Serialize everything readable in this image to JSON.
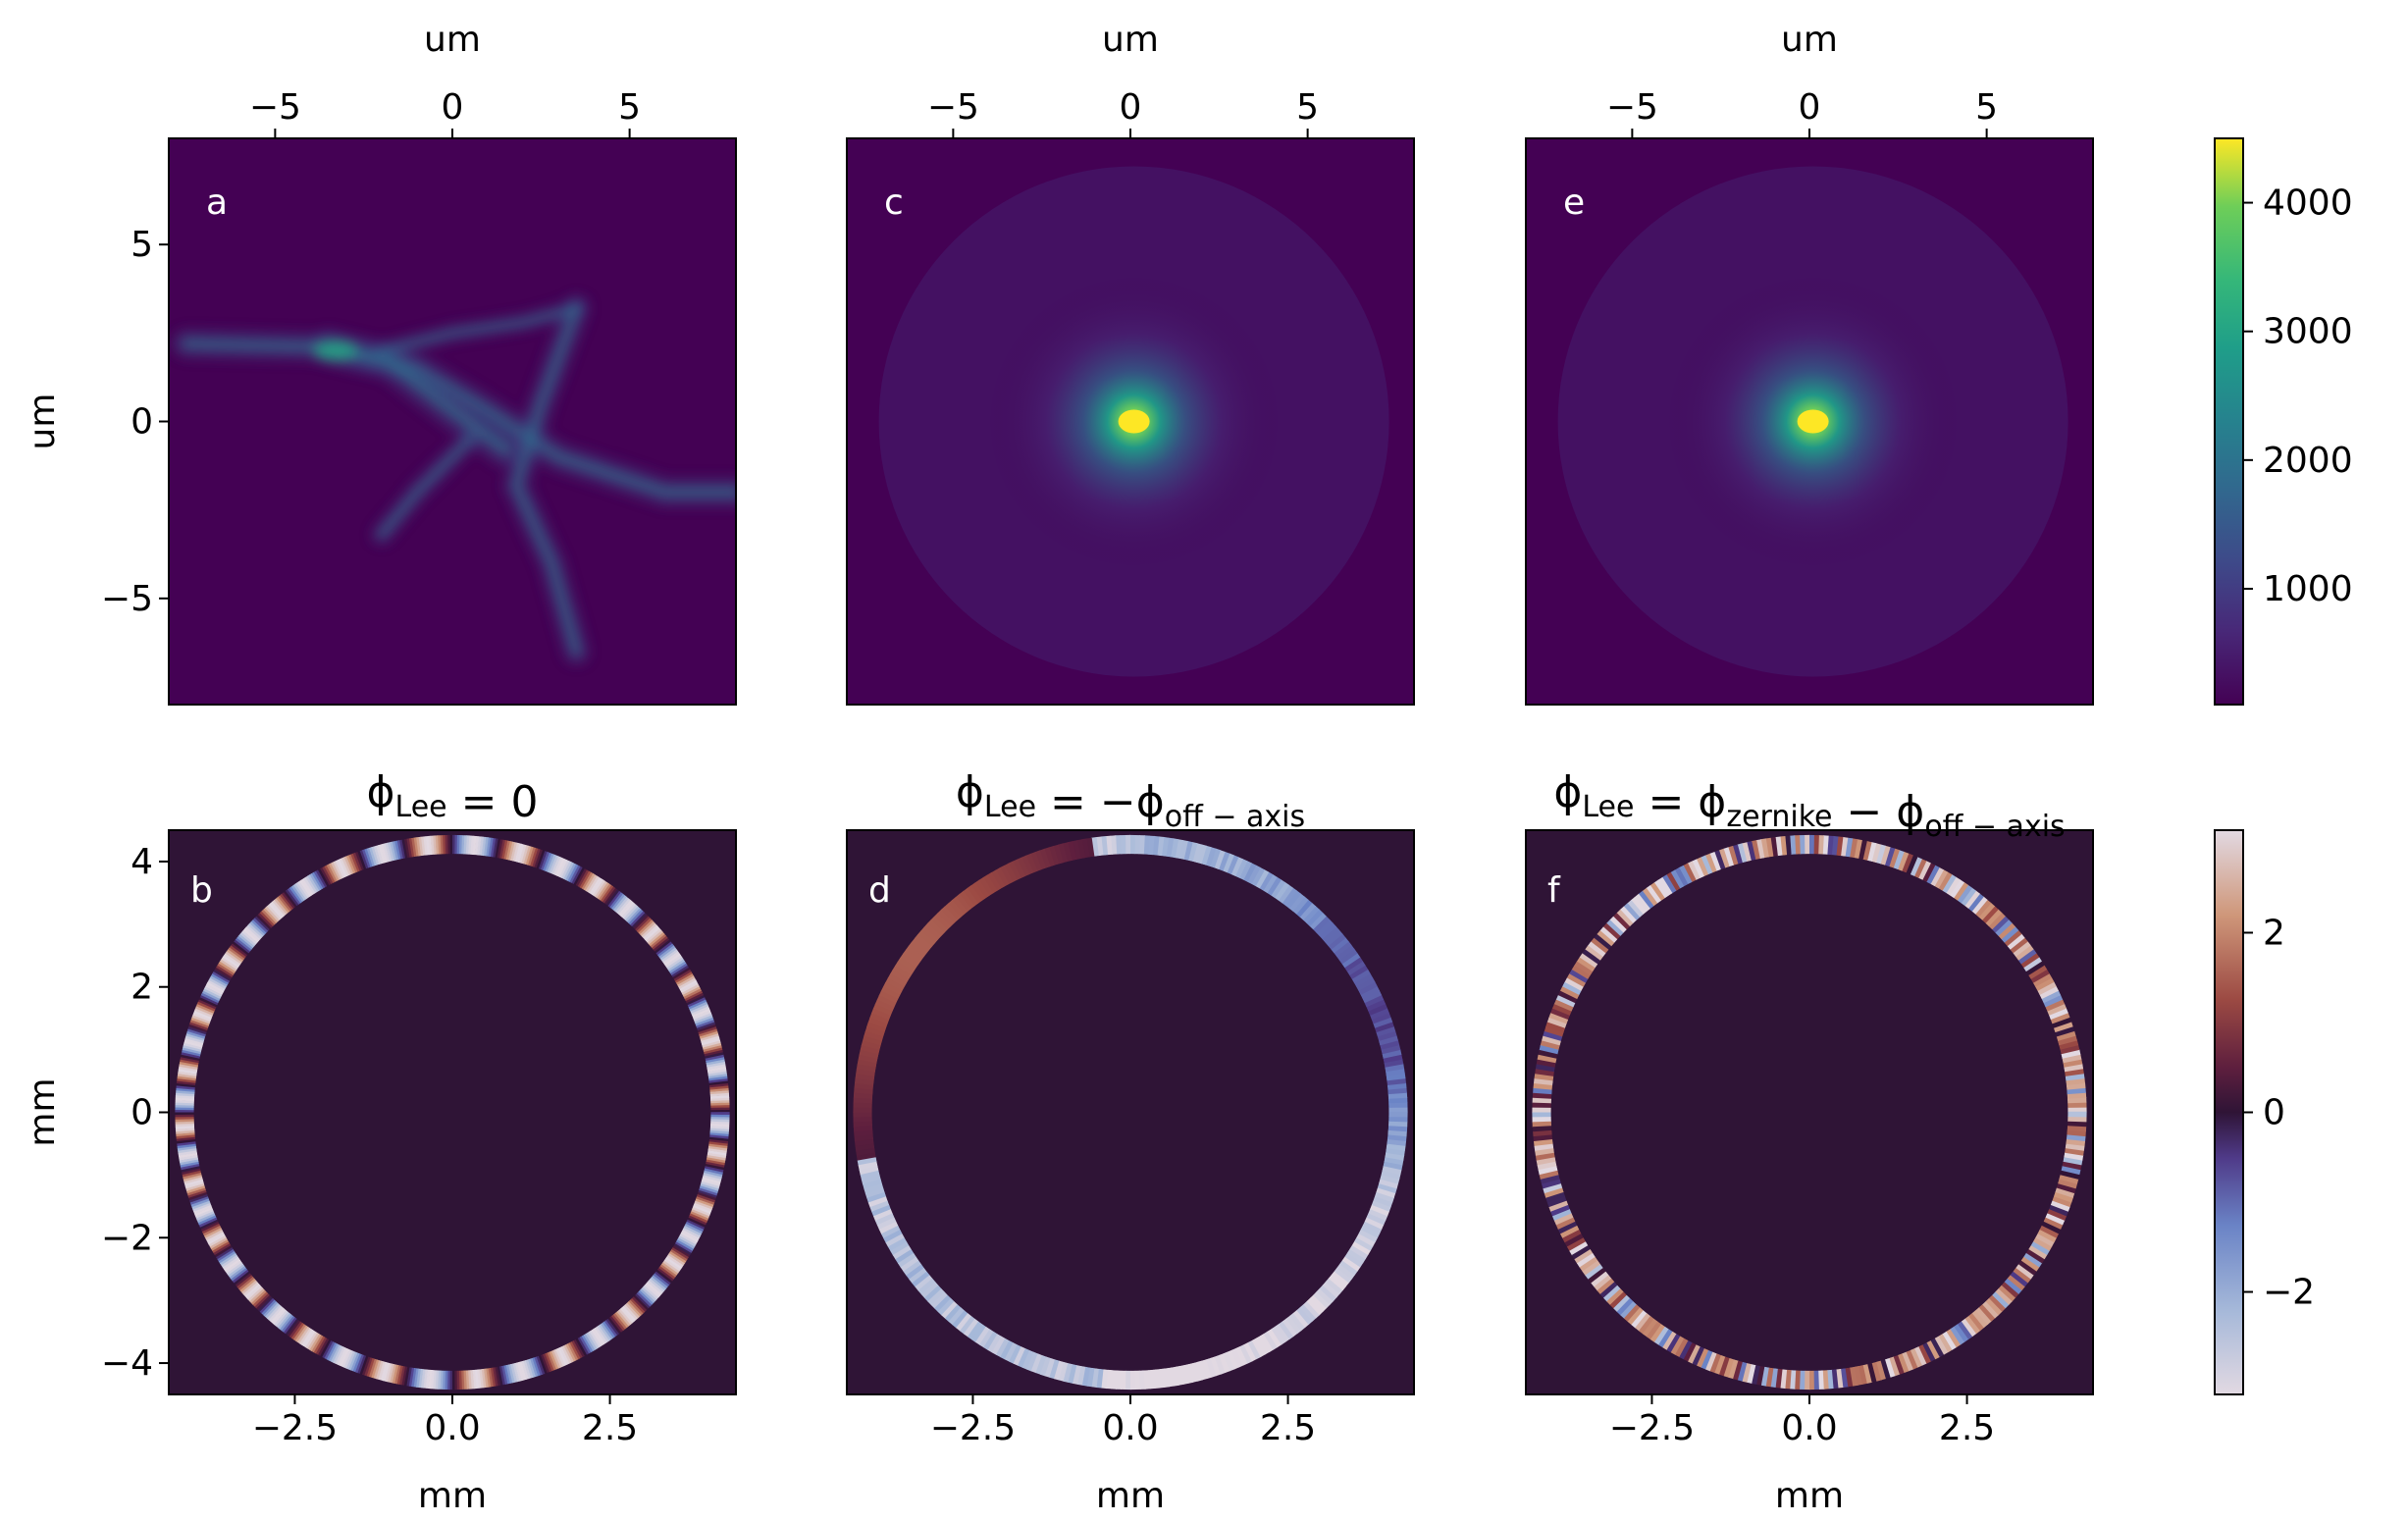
{
  "chart_data": [
    {
      "type": "heatmap",
      "panel_label": "a",
      "title": "",
      "xlabel": "um",
      "xlabel_position": "top",
      "ylabel": "um",
      "xlim": [
        -8,
        8
      ],
      "ylim": [
        -8,
        8
      ],
      "xticks": [
        "−5",
        "0",
        "5"
      ],
      "yticks": [
        "5",
        "0",
        "−5"
      ],
      "xtick_values": [
        -5,
        0,
        5
      ],
      "ytick_values": [
        5,
        0,
        -5
      ],
      "colormap": "viridis",
      "description_of_content": "focal spot intensity",
      "pattern": "star"
    },
    {
      "type": "heatmap",
      "panel_label": "c",
      "title": "",
      "xlabel": "um",
      "xlabel_position": "top",
      "ylabel": "",
      "xlim": [
        -8,
        8
      ],
      "ylim": [
        -8,
        8
      ],
      "xticks": [
        "−5",
        "0",
        "5"
      ],
      "xtick_values": [
        -5,
        0,
        5
      ],
      "colormap": "viridis",
      "pattern": "spot",
      "peak_position": [
        0.1,
        0.0
      ]
    },
    {
      "type": "heatmap",
      "panel_label": "e",
      "title": "",
      "xlabel": "um",
      "xlabel_position": "top",
      "ylabel": "",
      "xlim": [
        -8,
        8
      ],
      "ylim": [
        -8,
        8
      ],
      "xticks": [
        "−5",
        "0",
        "5"
      ],
      "xtick_values": [
        -5,
        0,
        5
      ],
      "colormap": "viridis",
      "pattern": "spot",
      "peak_position": [
        0.1,
        0.0
      ]
    },
    {
      "type": "heatmap",
      "panel_label": "b",
      "title": "ϕLee = 0",
      "title_parts": {
        "base": "ϕ",
        "sub": "Lee",
        "rest": " = 0"
      },
      "xlabel": "mm",
      "ylabel": "mm",
      "xlim": [
        -4.5,
        4.5
      ],
      "ylim": [
        -4.5,
        4.5
      ],
      "xticks": [
        "−2.5",
        "0.0",
        "2.5"
      ],
      "xtick_values": [
        -2.5,
        0.0,
        2.5
      ],
      "yticks": [
        "4",
        "2",
        "0",
        "−2",
        "−4"
      ],
      "ytick_values": [
        4,
        2,
        0,
        -2,
        -4
      ],
      "colormap": "twilight_shifted",
      "ring_inner_radius": 4.1,
      "ring_outer_radius": 4.4,
      "pattern": "fringes"
    },
    {
      "type": "heatmap",
      "panel_label": "d",
      "title": "ϕLee = −ϕoff−axis",
      "title_parts": {
        "base": "ϕ",
        "sub": "Lee",
        "rest": " = −ϕ",
        "sub2": "off − axis"
      },
      "xlabel": "mm",
      "ylabel": "",
      "xlim": [
        -4.5,
        4.5
      ],
      "ylim": [
        -4.5,
        4.5
      ],
      "xticks": [
        "−2.5",
        "0.0",
        "2.5"
      ],
      "xtick_values": [
        -2.5,
        0.0,
        2.5
      ],
      "colormap": "twilight_shifted",
      "ring_inner_radius": 4.1,
      "ring_outer_radius": 4.4,
      "pattern": "smooth"
    },
    {
      "type": "heatmap",
      "panel_label": "f",
      "title": "ϕLee = ϕzernike − ϕoff−axis",
      "title_parts": {
        "base": "ϕ",
        "sub": "Lee",
        "rest": " = ϕ",
        "sub2": "zernike",
        "rest2": " − ϕ",
        "sub3": "off − axis"
      },
      "xlabel": "mm",
      "ylabel": "",
      "xlim": [
        -4.5,
        4.5
      ],
      "ylim": [
        -4.5,
        4.5
      ],
      "xticks": [
        "−2.5",
        "0.0",
        "2.5"
      ],
      "xtick_values": [
        -2.5,
        0.0,
        2.5
      ],
      "colormap": "twilight_shifted",
      "ring_inner_radius": 4.1,
      "ring_outer_radius": 4.4,
      "pattern": "noisy"
    }
  ],
  "colorbars": [
    {
      "colormap": "viridis",
      "range": [
        100,
        4500
      ],
      "ticks": [
        "1000",
        "2000",
        "3000",
        "4000"
      ],
      "tick_values": [
        1000,
        2000,
        3000,
        4000
      ]
    },
    {
      "colormap": "twilight_shifted",
      "range": [
        -3.14159,
        3.14159
      ],
      "ticks": [
        "2",
        "0",
        "−2"
      ],
      "tick_values": [
        2,
        0,
        -2
      ]
    }
  ],
  "colors": {
    "viridis_low": "#440154",
    "viridis_mid": "#21918c",
    "viridis_high": "#fde725",
    "twilight_zero": "#2f1436",
    "twilight_pos": "#c27a5e",
    "twilight_neg": "#6a8fc8",
    "twilight_end": "#e2d9e2"
  }
}
